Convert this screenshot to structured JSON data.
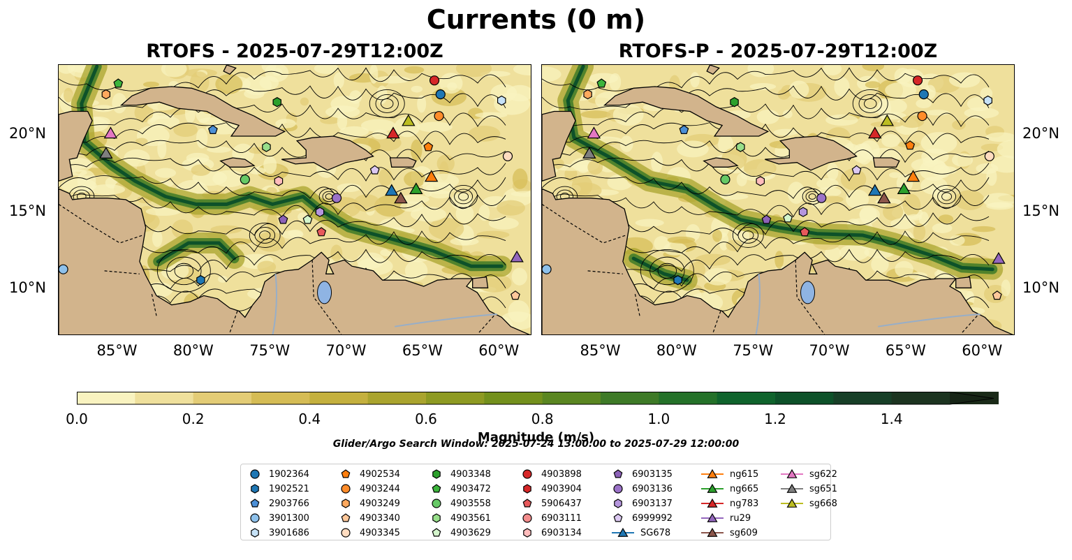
{
  "figure": {
    "suptitle": "Currents (0 m)",
    "panels": [
      {
        "title": "RTOFS - 2025-07-29T12:00Z"
      },
      {
        "title": "RTOFS-P - 2025-07-29T12:00Z"
      }
    ],
    "x_ticks": [
      "85°W",
      "80°W",
      "75°W",
      "70°W",
      "65°W",
      "60°W"
    ],
    "y_ticks": [
      "20°N",
      "15°N",
      "10°N"
    ],
    "colorbar": {
      "label": "Magnitude (m/s)",
      "ticks": [
        "0.0",
        "0.2",
        "0.4",
        "0.6",
        "0.8",
        "1.0",
        "1.2",
        "1.4"
      ],
      "colors": [
        "#f9f3c0",
        "#efe09c",
        "#e3cc76",
        "#d5bc55",
        "#c4b03e",
        "#aaa42e",
        "#8e9a22",
        "#73901c",
        "#5a8621",
        "#3e7a27",
        "#247129",
        "#0f632c",
        "#0d5129",
        "#173f27",
        "#1c3420",
        "#1a2a18"
      ],
      "extend_color": "#162415"
    },
    "search_window_note": "Glider/Argo Search Window: 2025-07-24 13:00:00 to 2025-07-29 12:00:00"
  },
  "legend": [
    {
      "label": "1902364",
      "marker": "circle",
      "color": "#1f77b4"
    },
    {
      "label": "1902521",
      "marker": "hexagon",
      "color": "#1f77b4"
    },
    {
      "label": "2903766",
      "marker": "pentagon",
      "color": "#4c8fd6"
    },
    {
      "label": "3901300",
      "marker": "circle",
      "color": "#8ec1eb"
    },
    {
      "label": "3901686",
      "marker": "hexagon",
      "color": "#c6e2f7"
    },
    {
      "label": "4902534",
      "marker": "pentagon",
      "color": "#ff7f0e"
    },
    {
      "label": "4903244",
      "marker": "circle",
      "color": "#ff8c2a"
    },
    {
      "label": "4903249",
      "marker": "hexagon",
      "color": "#ffa95e"
    },
    {
      "label": "4903340",
      "marker": "pentagon",
      "color": "#ffc89a"
    },
    {
      "label": "4903345",
      "marker": "circle",
      "color": "#ffdcc0"
    },
    {
      "label": "4903348",
      "marker": "hexagon",
      "color": "#2ca02c"
    },
    {
      "label": "4903472",
      "marker": "pentagon",
      "color": "#3cb43c"
    },
    {
      "label": "4903558",
      "marker": "circle",
      "color": "#66c966"
    },
    {
      "label": "4903561",
      "marker": "hexagon",
      "color": "#98df8a"
    },
    {
      "label": "4903629",
      "marker": "pentagon",
      "color": "#d4f5cc"
    },
    {
      "label": "4903898",
      "marker": "circle",
      "color": "#d62728"
    },
    {
      "label": "4903904",
      "marker": "hexagon",
      "color": "#d62728"
    },
    {
      "label": "5906437",
      "marker": "pentagon",
      "color": "#e7595b"
    },
    {
      "label": "6903111",
      "marker": "circle",
      "color": "#f28c8c"
    },
    {
      "label": "6903134",
      "marker": "hexagon",
      "color": "#ffbcbc"
    },
    {
      "label": "6903135",
      "marker": "pentagon",
      "color": "#8c62b8"
    },
    {
      "label": "6903136",
      "marker": "circle",
      "color": "#9b72c8"
    },
    {
      "label": "6903137",
      "marker": "hexagon",
      "color": "#b596dd"
    },
    {
      "label": "6999992",
      "marker": "pentagon",
      "color": "#dcc9f2"
    },
    {
      "label": "SG678",
      "marker": "triangle",
      "color": "#1f77b4"
    },
    {
      "label": "ng615",
      "marker": "triangle",
      "color": "#ff7f0e"
    },
    {
      "label": "ng665",
      "marker": "triangle",
      "color": "#2ca02c"
    },
    {
      "label": "ng783",
      "marker": "triangle",
      "color": "#d62728"
    },
    {
      "label": "ru29",
      "marker": "triangle",
      "color": "#9467bd"
    },
    {
      "label": "sg609",
      "marker": "triangle",
      "color": "#8c564b"
    },
    {
      "label": "sg622",
      "marker": "triangle",
      "color": "#e377c2"
    },
    {
      "label": "sg651",
      "marker": "triangle",
      "color": "#7f7f7f"
    },
    {
      "label": "sg668",
      "marker": "triangle",
      "color": "#bcbd22"
    }
  ],
  "map_data": {
    "extent_lon": [
      -89,
      -58
    ],
    "extent_lat": [
      7,
      24.5
    ],
    "platforms_left": [
      {
        "id": "1902364",
        "lon": -64.0,
        "lat": 22.6
      },
      {
        "id": "2903766",
        "lon": -78.9,
        "lat": 20.3
      },
      {
        "id": "3901300",
        "lon": -88.7,
        "lat": 11.3
      },
      {
        "id": "3901686",
        "lon": -60.0,
        "lat": 22.2
      },
      {
        "id": "4902534",
        "lon": -64.8,
        "lat": 19.2
      },
      {
        "id": "4903244",
        "lon": -64.1,
        "lat": 21.2
      },
      {
        "id": "4903249",
        "lon": -85.9,
        "lat": 22.6
      },
      {
        "id": "4903340",
        "lon": -59.1,
        "lat": 9.6
      },
      {
        "id": "4903345",
        "lon": -59.6,
        "lat": 18.6
      },
      {
        "id": "4903348",
        "lon": -74.7,
        "lat": 22.1
      },
      {
        "id": "4903472",
        "lon": -85.1,
        "lat": 23.3
      },
      {
        "id": "4903558",
        "lon": -76.8,
        "lat": 17.1
      },
      {
        "id": "4903561",
        "lon": -75.4,
        "lat": 19.2
      },
      {
        "id": "4903629",
        "lon": -72.7,
        "lat": 14.5
      },
      {
        "id": "4903898",
        "lon": -64.4,
        "lat": 23.5
      },
      {
        "id": "5906437",
        "lon": -71.8,
        "lat": 13.7
      },
      {
        "id": "6903134",
        "lon": -74.6,
        "lat": 17.0
      },
      {
        "id": "6903135",
        "lon": -74.3,
        "lat": 14.5
      },
      {
        "id": "6903136",
        "lon": -70.8,
        "lat": 15.9
      },
      {
        "id": "6903137",
        "lon": -71.9,
        "lat": 15.0
      },
      {
        "id": "6999992",
        "lon": -68.3,
        "lat": 17.7
      },
      {
        "id": "1902521",
        "lon": -79.7,
        "lat": 10.6
      }
    ],
    "platforms_right": [
      {
        "id": "1902364",
        "lon": -64.0,
        "lat": 22.6
      },
      {
        "id": "2903766",
        "lon": -79.7,
        "lat": 20.3
      },
      {
        "id": "3901300",
        "lon": -88.7,
        "lat": 11.3
      },
      {
        "id": "3901686",
        "lon": -59.8,
        "lat": 22.2
      },
      {
        "id": "4902534",
        "lon": -64.9,
        "lat": 19.3
      },
      {
        "id": "4903244",
        "lon": -64.1,
        "lat": 21.2
      },
      {
        "id": "4903249",
        "lon": -86.0,
        "lat": 22.6
      },
      {
        "id": "4903340",
        "lon": -59.2,
        "lat": 9.6
      },
      {
        "id": "4903345",
        "lon": -59.7,
        "lat": 18.6
      },
      {
        "id": "4903348",
        "lon": -76.4,
        "lat": 22.1
      },
      {
        "id": "4903472",
        "lon": -85.1,
        "lat": 23.3
      },
      {
        "id": "4903558",
        "lon": -77.0,
        "lat": 17.1
      },
      {
        "id": "4903561",
        "lon": -76.0,
        "lat": 19.2
      },
      {
        "id": "4903629",
        "lon": -72.9,
        "lat": 14.6
      },
      {
        "id": "4903898",
        "lon": -64.4,
        "lat": 23.5
      },
      {
        "id": "5906437",
        "lon": -71.8,
        "lat": 13.7
      },
      {
        "id": "6903134",
        "lon": -74.7,
        "lat": 17.0
      },
      {
        "id": "6903135",
        "lon": -74.3,
        "lat": 14.5
      },
      {
        "id": "6903136",
        "lon": -70.7,
        "lat": 15.9
      },
      {
        "id": "6903137",
        "lon": -71.9,
        "lat": 15.0
      },
      {
        "id": "6999992",
        "lon": -68.4,
        "lat": 17.7
      },
      {
        "id": "1902521",
        "lon": -80.1,
        "lat": 10.6
      }
    ],
    "gliders_left": [
      {
        "id": "ng615",
        "lon": -64.6,
        "lat": 17.3
      },
      {
        "id": "ng665",
        "lon": -65.6,
        "lat": 16.5
      },
      {
        "id": "ng783",
        "lon": -67.1,
        "lat": 20.1
      },
      {
        "id": "ru29",
        "lon": -59.0,
        "lat": 12.1
      },
      {
        "id": "SG678",
        "lon": -67.2,
        "lat": 16.4
      },
      {
        "id": "sg609",
        "lon": -66.6,
        "lat": 15.9
      },
      {
        "id": "sg622",
        "lon": -85.6,
        "lat": 20.1
      },
      {
        "id": "sg651",
        "lon": -85.9,
        "lat": 18.8
      },
      {
        "id": "sg668",
        "lon": -66.1,
        "lat": 20.9
      }
    ],
    "gliders_right": [
      {
        "id": "ng615",
        "lon": -64.7,
        "lat": 17.3
      },
      {
        "id": "ng665",
        "lon": -65.3,
        "lat": 16.5
      },
      {
        "id": "ng783",
        "lon": -67.2,
        "lat": 20.1
      },
      {
        "id": "ru29",
        "lon": -59.1,
        "lat": 12.0
      },
      {
        "id": "SG678",
        "lon": -67.2,
        "lat": 16.4
      },
      {
        "id": "sg609",
        "lon": -66.6,
        "lat": 15.9
      },
      {
        "id": "sg622",
        "lon": -85.6,
        "lat": 20.1
      },
      {
        "id": "sg651",
        "lon": -85.9,
        "lat": 18.8
      },
      {
        "id": "sg668",
        "lon": -66.4,
        "lat": 20.9
      }
    ]
  }
}
